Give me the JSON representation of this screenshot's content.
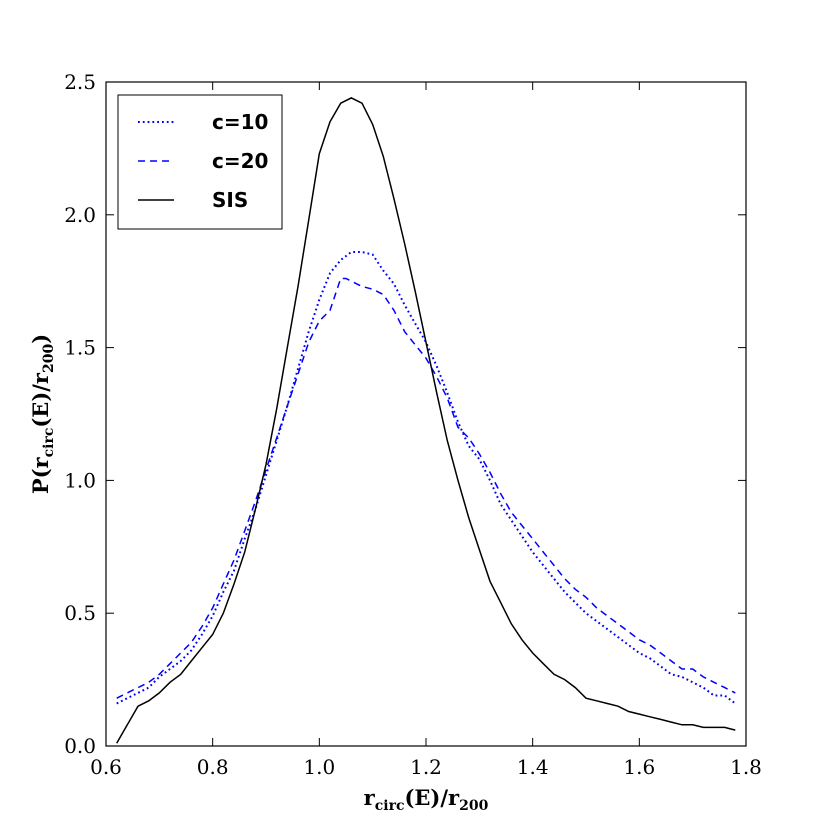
{
  "chart_data": {
    "type": "line",
    "title": "",
    "xlabel": {
      "main": "r",
      "sub": "circ",
      "mid": "(E)/r",
      "sub2": "200"
    },
    "ylabel": {
      "main": "P(r",
      "sub": "circ",
      "mid": "(E)/r",
      "sub2": "200",
      "end": ")"
    },
    "xlim": [
      0.6,
      1.8
    ],
    "ylim": [
      0.0,
      2.5
    ],
    "xticks": [
      0.6,
      0.8,
      1.0,
      1.2,
      1.4,
      1.6,
      1.8
    ],
    "xtick_labels": [
      "0.6",
      "0.8",
      "1.0",
      "1.2",
      "1.4",
      "1.6",
      "1.8"
    ],
    "yticks": [
      0.0,
      0.5,
      1.0,
      1.5,
      2.0,
      2.5
    ],
    "ytick_labels": [
      "0.0",
      "0.5",
      "1.0",
      "1.5",
      "2.0",
      "2.5"
    ],
    "grid": false,
    "legend_position": "top-left",
    "series": [
      {
        "name": "c=10",
        "color": "#0000ff",
        "style": "dotted",
        "x": [
          0.62,
          0.64,
          0.66,
          0.68,
          0.7,
          0.72,
          0.74,
          0.76,
          0.78,
          0.8,
          0.82,
          0.84,
          0.86,
          0.88,
          0.9,
          0.92,
          0.94,
          0.96,
          0.98,
          1.0,
          1.02,
          1.04,
          1.06,
          1.08,
          1.1,
          1.12,
          1.14,
          1.16,
          1.18,
          1.2,
          1.22,
          1.24,
          1.26,
          1.28,
          1.3,
          1.32,
          1.34,
          1.36,
          1.38,
          1.4,
          1.42,
          1.44,
          1.46,
          1.48,
          1.5,
          1.52,
          1.54,
          1.56,
          1.58,
          1.6,
          1.62,
          1.64,
          1.66,
          1.68,
          1.7,
          1.72,
          1.74,
          1.76,
          1.78
        ],
        "y": [
          0.16,
          0.18,
          0.2,
          0.22,
          0.26,
          0.29,
          0.32,
          0.36,
          0.42,
          0.49,
          0.58,
          0.66,
          0.78,
          0.89,
          1.02,
          1.15,
          1.28,
          1.42,
          1.56,
          1.68,
          1.78,
          1.83,
          1.86,
          1.86,
          1.85,
          1.79,
          1.74,
          1.66,
          1.59,
          1.52,
          1.43,
          1.33,
          1.22,
          1.13,
          1.08,
          1.0,
          0.91,
          0.85,
          0.79,
          0.73,
          0.68,
          0.63,
          0.58,
          0.54,
          0.5,
          0.47,
          0.44,
          0.41,
          0.38,
          0.35,
          0.33,
          0.3,
          0.27,
          0.26,
          0.24,
          0.22,
          0.19,
          0.19,
          0.16
        ]
      },
      {
        "name": "c=20",
        "color": "#0000ff",
        "style": "dashed",
        "x": [
          0.62,
          0.64,
          0.66,
          0.68,
          0.7,
          0.72,
          0.74,
          0.76,
          0.78,
          0.8,
          0.82,
          0.84,
          0.86,
          0.88,
          0.9,
          0.92,
          0.94,
          0.96,
          0.98,
          1.0,
          1.02,
          1.04,
          1.05,
          1.06,
          1.08,
          1.1,
          1.12,
          1.14,
          1.16,
          1.18,
          1.2,
          1.22,
          1.24,
          1.26,
          1.28,
          1.3,
          1.32,
          1.34,
          1.36,
          1.38,
          1.4,
          1.42,
          1.44,
          1.46,
          1.48,
          1.5,
          1.52,
          1.54,
          1.56,
          1.58,
          1.6,
          1.62,
          1.64,
          1.66,
          1.68,
          1.7,
          1.72,
          1.74,
          1.76,
          1.78
        ],
        "y": [
          0.18,
          0.2,
          0.22,
          0.24,
          0.27,
          0.31,
          0.35,
          0.39,
          0.45,
          0.52,
          0.61,
          0.7,
          0.81,
          0.92,
          1.04,
          1.16,
          1.28,
          1.4,
          1.52,
          1.6,
          1.64,
          1.76,
          1.76,
          1.75,
          1.73,
          1.72,
          1.7,
          1.64,
          1.56,
          1.51,
          1.46,
          1.39,
          1.31,
          1.2,
          1.16,
          1.1,
          1.03,
          0.95,
          0.88,
          0.83,
          0.78,
          0.73,
          0.68,
          0.63,
          0.59,
          0.56,
          0.52,
          0.49,
          0.46,
          0.43,
          0.4,
          0.38,
          0.35,
          0.32,
          0.29,
          0.29,
          0.26,
          0.24,
          0.22,
          0.2
        ]
      },
      {
        "name": "SIS",
        "color": "#000000",
        "style": "solid",
        "x": [
          0.62,
          0.64,
          0.66,
          0.68,
          0.7,
          0.72,
          0.74,
          0.76,
          0.78,
          0.8,
          0.82,
          0.84,
          0.86,
          0.88,
          0.9,
          0.92,
          0.94,
          0.96,
          0.98,
          1.0,
          1.02,
          1.04,
          1.06,
          1.07,
          1.08,
          1.1,
          1.12,
          1.14,
          1.16,
          1.18,
          1.2,
          1.22,
          1.24,
          1.26,
          1.28,
          1.3,
          1.32,
          1.34,
          1.36,
          1.38,
          1.4,
          1.42,
          1.44,
          1.46,
          1.48,
          1.5,
          1.52,
          1.54,
          1.56,
          1.58,
          1.6,
          1.62,
          1.64,
          1.66,
          1.68,
          1.7,
          1.72,
          1.74,
          1.76,
          1.78
        ],
        "y": [
          0.01,
          0.08,
          0.15,
          0.17,
          0.2,
          0.24,
          0.27,
          0.32,
          0.37,
          0.42,
          0.5,
          0.61,
          0.73,
          0.89,
          1.06,
          1.27,
          1.5,
          1.73,
          1.98,
          2.23,
          2.35,
          2.42,
          2.44,
          2.43,
          2.42,
          2.34,
          2.22,
          2.06,
          1.89,
          1.71,
          1.52,
          1.33,
          1.15,
          1.0,
          0.86,
          0.74,
          0.62,
          0.54,
          0.46,
          0.4,
          0.35,
          0.31,
          0.27,
          0.25,
          0.22,
          0.18,
          0.17,
          0.16,
          0.15,
          0.13,
          0.12,
          0.11,
          0.1,
          0.09,
          0.08,
          0.08,
          0.07,
          0.07,
          0.07,
          0.06
        ]
      }
    ]
  }
}
